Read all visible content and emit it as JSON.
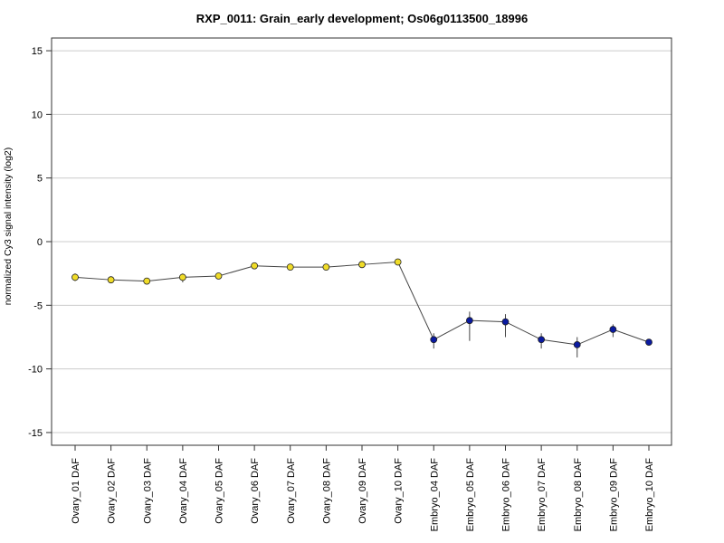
{
  "chart_data": {
    "type": "line",
    "title": "RXP_0011: Grain_early development; Os06g0113500_18996",
    "xlabel": "",
    "ylabel": "normalized Cy3 signal intensity (log2)",
    "ylim": [
      -16,
      16
    ],
    "yticks": [
      -15,
      -10,
      -5,
      0,
      5,
      10,
      15
    ],
    "grid": true,
    "categories": [
      "Ovary_01 DAF",
      "Ovary_02 DAF",
      "Ovary_03 DAF",
      "Ovary_04 DAF",
      "Ovary_05 DAF",
      "Ovary_06 DAF",
      "Ovary_07 DAF",
      "Ovary_08 DAF",
      "Ovary_09 DAF",
      "Ovary_10 DAF",
      "Embryo_04 DAF",
      "Embryo_05 DAF",
      "Embryo_06 DAF",
      "Embryo_07 DAF",
      "Embryo_08 DAF",
      "Embryo_09 DAF",
      "Embryo_10 DAF"
    ],
    "values": [
      -2.8,
      -3.0,
      -3.1,
      -2.8,
      -2.7,
      -1.9,
      -2.0,
      -2.0,
      -1.8,
      -1.6,
      -7.7,
      -6.2,
      -6.3,
      -7.7,
      -8.1,
      -6.9,
      -7.9
    ],
    "error_low": [
      -3.1,
      -3.2,
      -3.3,
      -3.2,
      -2.9,
      -2.1,
      -2.2,
      -2.2,
      -2.0,
      -1.8,
      -8.4,
      -7.8,
      -7.5,
      -8.4,
      -9.1,
      -7.5,
      -8.0
    ],
    "error_high": [
      -2.5,
      -2.8,
      -2.9,
      -2.5,
      -2.5,
      -1.7,
      -1.8,
      -1.8,
      -1.6,
      -1.4,
      -7.2,
      -5.5,
      -5.7,
      -7.2,
      -7.5,
      -6.5,
      -7.8
    ],
    "point_colors": [
      "#f0dc28",
      "#f0dc28",
      "#f0dc28",
      "#f0dc28",
      "#f0dc28",
      "#f0dc28",
      "#f0dc28",
      "#f0dc28",
      "#f0dc28",
      "#f0dc28",
      "#0a1aa0",
      "#0a1aa0",
      "#0a1aa0",
      "#0a1aa0",
      "#0a1aa0",
      "#0a1aa0",
      "#0a1aa0"
    ],
    "line_color": "#444444",
    "grid_color": "#cccccc"
  }
}
